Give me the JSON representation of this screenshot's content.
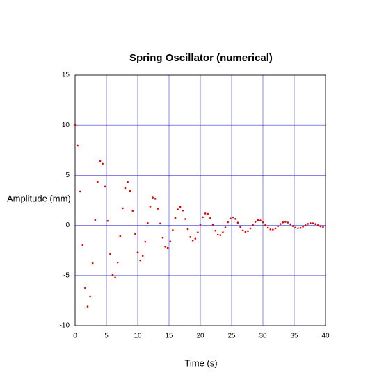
{
  "chart_data": {
    "type": "scatter",
    "title": "Spring Oscillator (numerical)",
    "x_label": "Time (s)",
    "y_label": "Amplitude (mm)",
    "xlim": [
      0,
      40
    ],
    "ylim": [
      -10,
      15
    ],
    "xticks": [
      0,
      5,
      10,
      15,
      20,
      25,
      30,
      35,
      40
    ],
    "yticks": [
      -10,
      -5,
      0,
      5,
      10,
      15
    ],
    "grid": true,
    "grid_color": "#3b3bd6",
    "series": [
      {
        "color": "#e00000",
        "x": [
          0,
          0.4,
          0.8,
          1.2,
          1.6,
          2,
          2.4,
          2.8,
          3.2,
          3.6,
          4,
          4.4,
          4.8,
          5.2,
          5.6,
          6,
          6.4,
          6.8,
          7.2,
          7.6,
          8,
          8.4,
          8.8,
          9.2,
          9.6,
          10,
          10.4,
          10.8,
          11.2,
          11.6,
          12,
          12.4,
          12.8,
          13.2,
          13.6,
          14,
          14.4,
          14.8,
          15.2,
          15.6,
          16,
          16.4,
          16.8,
          17.2,
          17.6,
          18,
          18.4,
          18.8,
          19.2,
          19.6,
          20,
          20.4,
          20.8,
          21.2,
          21.6,
          22,
          22.4,
          22.8,
          23.2,
          23.6,
          24,
          24.4,
          24.8,
          25.2,
          25.6,
          26,
          26.4,
          26.8,
          27.2,
          27.6,
          28,
          28.4,
          28.8,
          29.2,
          29.6,
          30,
          30.4,
          30.8,
          31.2,
          31.6,
          32,
          32.4,
          32.8,
          33.2,
          33.6,
          34,
          34.4,
          34.8,
          35.2,
          35.6,
          36,
          36.4,
          36.8,
          37.2,
          37.6,
          38,
          38.4,
          38.8,
          39.2,
          39.6
        ],
        "values": [
          10,
          7.94,
          3.37,
          -1.97,
          -6.25,
          -8.1,
          -7.09,
          -3.78,
          0.54,
          4.35,
          6.41,
          6.15,
          3.86,
          0.44,
          -2.86,
          -4.94,
          -5.21,
          -3.71,
          -1.08,
          1.71,
          3.71,
          4.32,
          3.43,
          1.45,
          -0.85,
          -2.7,
          -3.5,
          -3.06,
          -1.63,
          0.23,
          1.88,
          2.77,
          2.65,
          1.67,
          0.19,
          -1.23,
          -2.13,
          -2.25,
          -1.6,
          -0.47,
          0.74,
          1.6,
          1.86,
          1.48,
          0.63,
          -0.37,
          -1.16,
          -1.51,
          -1.32,
          -0.7,
          0.1,
          0.81,
          1.19,
          1.15,
          0.72,
          0.08,
          -0.53,
          -0.92,
          -0.97,
          -0.69,
          -0.2,
          0.32,
          0.69,
          0.8,
          0.64,
          0.27,
          -0.16,
          -0.5,
          -0.65,
          -0.57,
          -0.3,
          0.04,
          0.35,
          0.52,
          0.49,
          0.31,
          0.04,
          -0.23,
          -0.4,
          -0.42,
          -0.3,
          -0.09,
          0.14,
          0.3,
          0.35,
          0.28,
          0.12,
          -0.07,
          -0.22,
          -0.28,
          -0.25,
          -0.13,
          0.02,
          0.15,
          0.22,
          0.21,
          0.13,
          0.02,
          -0.1,
          -0.17
        ]
      }
    ]
  }
}
